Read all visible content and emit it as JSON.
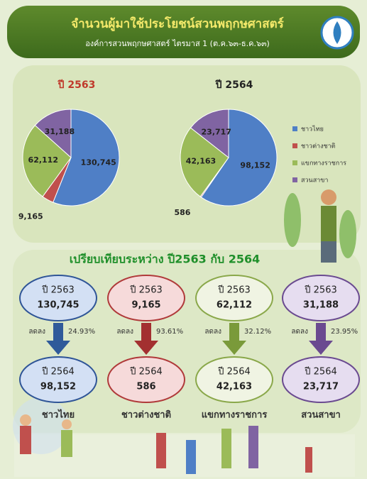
{
  "header": {
    "title": "จำนวนผู้มาใช้ประโยชน์สวนพฤกษศาสตร์",
    "subtitle": "องค์การสวนพฤกษศาสตร์ ไตรมาส 1 (ต.ค.๖๓-ธ.ค.๖๓)"
  },
  "chart_data": [
    {
      "type": "pie",
      "title": "ปี 2563",
      "categories": [
        "ชาวไทย",
        "ชาวต่างชาติ",
        "แขกทางราชการ",
        "สวนสาขา"
      ],
      "values": [
        130745,
        9165,
        62112,
        31188
      ],
      "value_labels": [
        "130,745",
        "9,165",
        "62,112",
        "31,188"
      ],
      "colors": [
        "#4f7fc6",
        "#c0504d",
        "#9bbb59",
        "#8064a2"
      ],
      "legend": "right"
    },
    {
      "type": "pie",
      "title": "ปี 2564",
      "values": [
        98152,
        586,
        42163,
        23717
      ],
      "value_labels": [
        "98,152",
        "586",
        "42,163",
        "23,717"
      ],
      "colors": [
        "#4f7fc6",
        "#c0504d",
        "#9bbb59",
        "#8064a2"
      ]
    }
  ],
  "comparison": {
    "title": "เปรียบเทียบระหว่าง ปี2563 กับ 2564",
    "items": [
      {
        "before_year": "ปี 2563",
        "before": "130,745",
        "change": "ลดลง",
        "percent": "24.93%",
        "after_year": "ปี 2564",
        "after": "98,152",
        "category": "ชาวไทย"
      },
      {
        "before_year": "ปี 2563",
        "before": "9,165",
        "change": "ลดลง",
        "percent": "93.61%",
        "after_year": "ปี 2564",
        "after": "586",
        "category": "ชาวต่างชาติ"
      },
      {
        "before_year": "ปี 2563",
        "before": "62,112",
        "change": "ลดลง",
        "percent": "32.12%",
        "after_year": "ปี 2564",
        "after": "42,163",
        "category": "แขกทางราชการ"
      },
      {
        "before_year": "ปี 2563",
        "before": "31,188",
        "change": "ลดลง",
        "percent": "23.95%",
        "after_year": "ปี 2564",
        "after": "23,717",
        "category": "สวนสาขา"
      }
    ]
  }
}
